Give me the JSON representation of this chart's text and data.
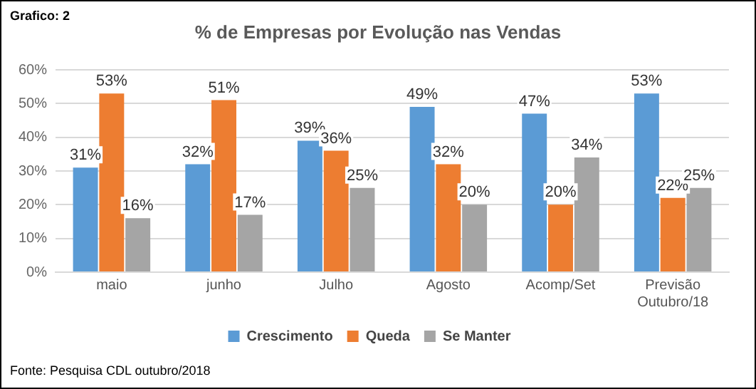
{
  "chart_data": {
    "type": "bar",
    "title": "% de Empresas por Evolução nas Vendas",
    "categories": [
      "maio",
      "junho",
      "Julho",
      "Agosto",
      "Acomp/Set",
      "Previsão Outubro/18"
    ],
    "series": [
      {
        "name": "Crescimento",
        "color": "#5b9bd5",
        "values": [
          31,
          32,
          39,
          49,
          47,
          53
        ],
        "value_labels": [
          "31%",
          "32%",
          "39%",
          "49%",
          "47%",
          "53%"
        ]
      },
      {
        "name": "Queda",
        "color": "#ed7d31",
        "values": [
          53,
          51,
          36,
          32,
          20,
          22
        ],
        "value_labels": [
          "53%",
          "51%",
          "36%",
          "32%",
          "20%",
          "22%"
        ]
      },
      {
        "name": "Se Manter",
        "color": "#a5a5a5",
        "values": [
          16,
          17,
          25,
          20,
          34,
          25
        ],
        "value_labels": [
          "16%",
          "17%",
          "25%",
          "20%",
          "34%",
          "25%"
        ]
      }
    ],
    "ylim": [
      0,
      60
    ],
    "yticks": [
      {
        "value": 0,
        "label": "0%"
      },
      {
        "value": 10,
        "label": "10%"
      },
      {
        "value": 20,
        "label": "20%"
      },
      {
        "value": 30,
        "label": "30%"
      },
      {
        "value": 40,
        "label": "40%"
      },
      {
        "value": 50,
        "label": "50%"
      },
      {
        "value": 60,
        "label": "60%"
      }
    ],
    "grid": "y",
    "legend": "bottom",
    "annotations": [
      "Grafico: 2",
      "Fonte: Pesquisa CDL outubro/2018"
    ]
  }
}
